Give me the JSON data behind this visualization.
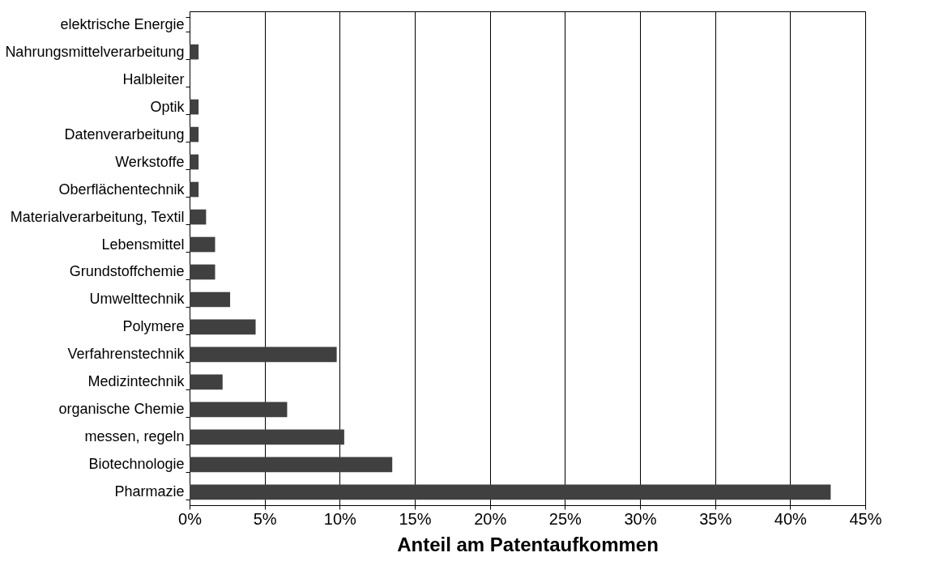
{
  "chart_data": {
    "type": "bar",
    "orientation": "horizontal",
    "xlabel": "Anteil am Patentaufkommen",
    "categories": [
      "elektrische Energie",
      "Nahrungsmittelverarbeitung",
      "Halbleiter",
      "Optik",
      "Datenverarbeitung",
      "Werkstoffe",
      "Oberflächentechnik",
      "Materialverarbeitung, Textil",
      "Lebensmittel",
      "Grundstoffchemie",
      "Umwelttechnik",
      "Polymere",
      "Verfahrenstechnik",
      "Medizintechnik",
      "organische Chemie",
      "messen, regeln",
      "Biotechnologie",
      "Pharmazie"
    ],
    "values": [
      0,
      0.6,
      0,
      0.6,
      0.6,
      0.6,
      0.6,
      1.1,
      1.7,
      1.7,
      2.7,
      4.4,
      9.8,
      2.2,
      6.5,
      10.3,
      13.5,
      42.7
    ],
    "color": "#404040",
    "xlim": [
      0,
      45
    ],
    "xticks": [
      {
        "value": 0,
        "label": "0%"
      },
      {
        "value": 5,
        "label": "5%"
      },
      {
        "value": 10,
        "label": "10%"
      },
      {
        "value": 15,
        "label": "15%"
      },
      {
        "value": 20,
        "label": "20%"
      },
      {
        "value": 25,
        "label": "25%"
      },
      {
        "value": 30,
        "label": "30%"
      },
      {
        "value": 35,
        "label": "35%"
      },
      {
        "value": 40,
        "label": "40%"
      },
      {
        "value": 45,
        "label": "45%"
      }
    ],
    "grid": "x"
  }
}
